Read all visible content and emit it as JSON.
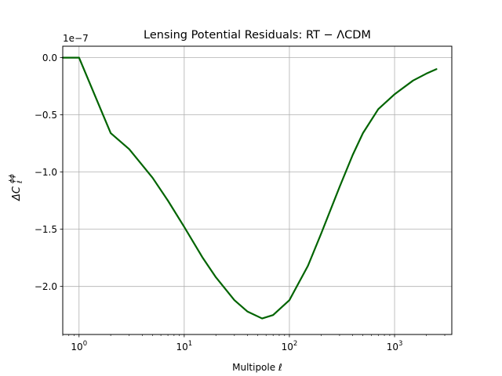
{
  "chart_data": {
    "type": "line",
    "title": "Lensing Potential Residuals: RT − ΛCDM",
    "xlabel": "Multipole ℓ",
    "ylabel": {
      "main": "ΔC",
      "sub": "ℓ",
      "sup": "ϕϕ"
    },
    "xscale": "log",
    "xlim": [
      0.7,
      3500
    ],
    "ylim": [
      -2.42e-07,
      1e-08
    ],
    "y_offset_text": "1e−7",
    "x_ticks": [
      {
        "value": 1,
        "base": "10",
        "exp": "0"
      },
      {
        "value": 10,
        "base": "10",
        "exp": "1"
      },
      {
        "value": 100,
        "base": "10",
        "exp": "2"
      },
      {
        "value": 1000,
        "base": "10",
        "exp": "3"
      }
    ],
    "y_ticks": [
      {
        "value": 0.0,
        "label": "0.0"
      },
      {
        "value": -5e-08,
        "label": "−0.5"
      },
      {
        "value": -1e-07,
        "label": "−1.0"
      },
      {
        "value": -1.5e-07,
        "label": "−1.5"
      },
      {
        "value": -2e-07,
        "label": "−2.0"
      }
    ],
    "grid": true,
    "series": [
      {
        "color": "#006400",
        "x": [
          0.7,
          1,
          2,
          3,
          5,
          7,
          10,
          15,
          20,
          30,
          40,
          55,
          70,
          100,
          150,
          200,
          300,
          400,
          500,
          700,
          1000,
          1500,
          2000,
          2500
        ],
        "y": [
          0.0,
          0.0,
          -6.6e-08,
          -8e-08,
          -1.05e-07,
          -1.25e-07,
          -1.48e-07,
          -1.75e-07,
          -1.92e-07,
          -2.12e-07,
          -2.22e-07,
          -2.28e-07,
          -2.25e-07,
          -2.12e-07,
          -1.82e-07,
          -1.54e-07,
          -1.13e-07,
          -8.5e-08,
          -6.6e-08,
          -4.5e-08,
          -3.2e-08,
          -2e-08,
          -1.4e-08,
          -1e-08
        ]
      }
    ]
  }
}
